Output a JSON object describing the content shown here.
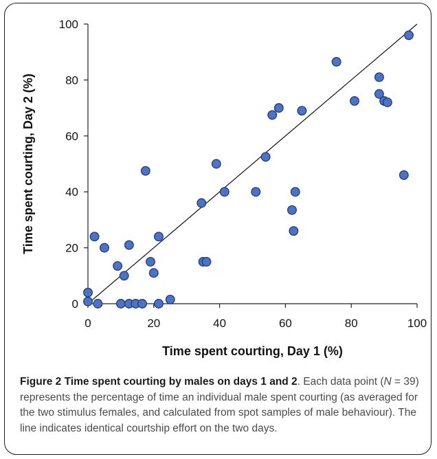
{
  "chart_data": {
    "type": "scatter",
    "xlabel": "Time spent courting, Day 1 (%)",
    "ylabel": "Time spent courting, Day 2 (%)",
    "xlim": [
      0,
      100
    ],
    "ylim": [
      0,
      100
    ],
    "xticks": [
      "0",
      "20",
      "40",
      "60",
      "80",
      "100"
    ],
    "yticks": [
      "0",
      "20",
      "40",
      "60",
      "80",
      "100"
    ],
    "reference_line": {
      "x": [
        0,
        100
      ],
      "y": [
        0,
        100
      ]
    },
    "points": [
      {
        "x": 0,
        "y": 4
      },
      {
        "x": 0,
        "y": 0.8
      },
      {
        "x": 3,
        "y": 0
      },
      {
        "x": 2,
        "y": 24
      },
      {
        "x": 5,
        "y": 20
      },
      {
        "x": 9,
        "y": 13.5
      },
      {
        "x": 10,
        "y": 0
      },
      {
        "x": 11,
        "y": 10
      },
      {
        "x": 12.5,
        "y": 21
      },
      {
        "x": 12.5,
        "y": 0
      },
      {
        "x": 14.5,
        "y": 0
      },
      {
        "x": 16.5,
        "y": 0
      },
      {
        "x": 17.5,
        "y": 47.5
      },
      {
        "x": 19,
        "y": 15
      },
      {
        "x": 20,
        "y": 11
      },
      {
        "x": 21.5,
        "y": 24
      },
      {
        "x": 21.5,
        "y": 0
      },
      {
        "x": 25,
        "y": 1.5
      },
      {
        "x": 34.5,
        "y": 36
      },
      {
        "x": 35,
        "y": 15
      },
      {
        "x": 36,
        "y": 15
      },
      {
        "x": 39,
        "y": 50
      },
      {
        "x": 41.5,
        "y": 40
      },
      {
        "x": 51,
        "y": 40
      },
      {
        "x": 54,
        "y": 52.5
      },
      {
        "x": 56,
        "y": 67.5
      },
      {
        "x": 58,
        "y": 70
      },
      {
        "x": 62,
        "y": 33.5
      },
      {
        "x": 62.5,
        "y": 26
      },
      {
        "x": 63,
        "y": 40
      },
      {
        "x": 65,
        "y": 69
      },
      {
        "x": 75.5,
        "y": 86.5
      },
      {
        "x": 81,
        "y": 72.5
      },
      {
        "x": 88.5,
        "y": 81
      },
      {
        "x": 88.5,
        "y": 75
      },
      {
        "x": 90,
        "y": 72.5
      },
      {
        "x": 96,
        "y": 46
      },
      {
        "x": 97.5,
        "y": 96
      },
      {
        "x": 91,
        "y": 72
      }
    ]
  },
  "caption": {
    "title": "Figure 2 Time spent courting by males on days 1 and 2",
    "body_before_n": ". Each data point (",
    "n_symbol": "N",
    "body_after_n": " = 39) represents the percentage of time an individual male spent courting (as averaged for the two stimulus females, and calculated from spot samples of male behaviour). The line indicates identical courtship effort on the two days."
  }
}
